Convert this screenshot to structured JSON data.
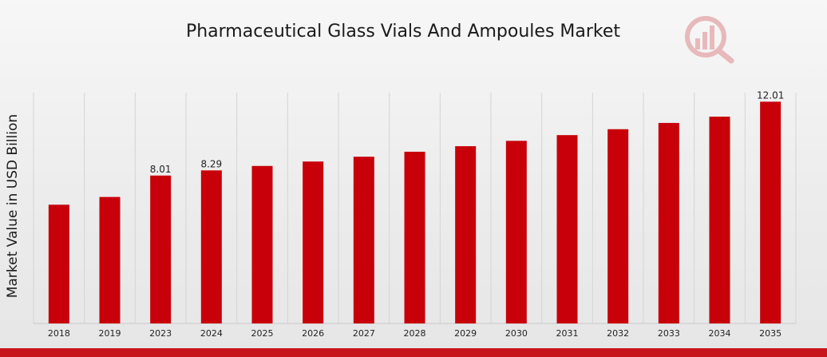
{
  "chart_data": {
    "type": "bar",
    "title": "Pharmaceutical Glass Vials And Ampoules Market",
    "xlabel": "",
    "ylabel": "Market Value in USD Billion",
    "categories": [
      "2018",
      "2019",
      "2023",
      "2024",
      "2025",
      "2026",
      "2027",
      "2028",
      "2029",
      "2030",
      "2031",
      "2032",
      "2033",
      "2034",
      "2035"
    ],
    "values": [
      6.43,
      6.85,
      8.01,
      8.29,
      8.53,
      8.77,
      9.03,
      9.3,
      9.6,
      9.89,
      10.2,
      10.52,
      10.86,
      11.2,
      12.01
    ],
    "data_labels": {
      "2023": "8.01",
      "2024": "8.29",
      "2035": "12.01"
    },
    "ylim": [
      0,
      12.5
    ],
    "grid": "vertical",
    "bar_color": "#c8000a"
  },
  "brand": {
    "logo_icon": "chart-magnifier-logo-icon",
    "accent_color": "#c8161d"
  }
}
